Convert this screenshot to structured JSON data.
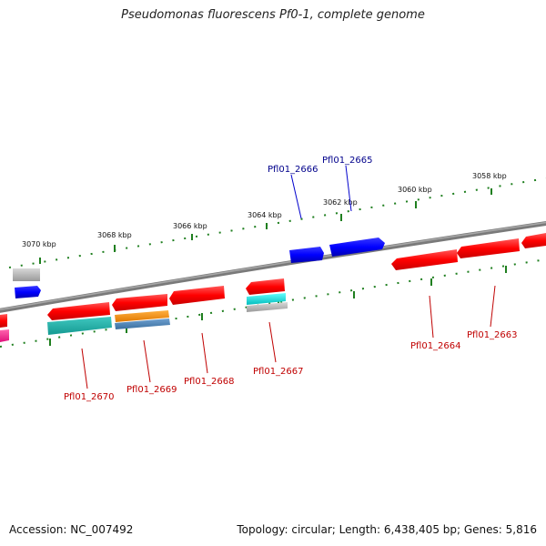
{
  "title": "Pseudomonas fluorescens Pf0-1, complete genome",
  "footer": {
    "accession": "Accession: NC_007492",
    "summary": "Topology: circular; Length: 6,438,405 bp; Genes: 5,816"
  },
  "colors": {
    "backbone": "#808080",
    "tick": "#1f7f1f",
    "forward_gene": "#0000ff",
    "reverse_gene": "#ff0000",
    "forward_label": "#00008b",
    "reverse_label": "#c00000",
    "cyan_feature": "#00cccc",
    "teal_feature": "#20b2aa",
    "orange_feature": "#ff8c00",
    "steel_feature": "#4682b4",
    "gray_feature": "#b0b0b0",
    "magenta_feature": "#ff1493"
  },
  "tick_labels": [
    "3070 kbp",
    "3068 kbp",
    "3066 kbp",
    "3064 kbp",
    "3062 kbp",
    "3060 kbp",
    "3058 kbp"
  ],
  "gene_labels": {
    "forward": [
      "Pfl01_2666",
      "Pfl01_2665"
    ],
    "reverse": [
      "Pfl01_2670",
      "Pfl01_2669",
      "Pfl01_2668",
      "Pfl01_2667",
      "Pfl01_2664",
      "Pfl01_2663"
    ]
  }
}
